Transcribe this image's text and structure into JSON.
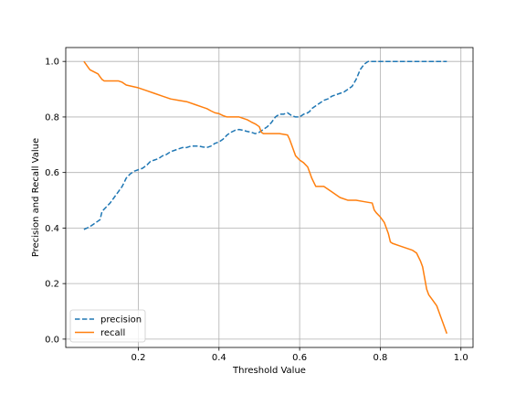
{
  "chart_data": {
    "type": "line",
    "xlabel": "Threshold Value",
    "ylabel": "Precision and Recall Value",
    "xlim": [
      0.02,
      1.03
    ],
    "ylim": [
      -0.03,
      1.05
    ],
    "xticks": [
      0.2,
      0.4,
      0.6,
      0.8,
      1.0
    ],
    "xtick_labels": [
      "0.2",
      "0.4",
      "0.6",
      "0.8",
      "1.0"
    ],
    "yticks": [
      0.0,
      0.2,
      0.4,
      0.6,
      0.8,
      1.0
    ],
    "ytick_labels": [
      "0.0",
      "0.2",
      "0.4",
      "0.6",
      "0.8",
      "1.0"
    ],
    "grid": true,
    "legend": "lower left",
    "series": [
      {
        "name": "precision",
        "color": "#1f77b4",
        "dash": "dashed",
        "x": [
          0.065,
          0.08,
          0.09,
          0.1,
          0.105,
          0.11,
          0.12,
          0.13,
          0.14,
          0.15,
          0.16,
          0.17,
          0.18,
          0.19,
          0.2,
          0.21,
          0.22,
          0.23,
          0.24,
          0.25,
          0.26,
          0.27,
          0.28,
          0.29,
          0.3,
          0.31,
          0.32,
          0.33,
          0.34,
          0.35,
          0.36,
          0.37,
          0.38,
          0.39,
          0.4,
          0.41,
          0.42,
          0.43,
          0.44,
          0.45,
          0.46,
          0.47,
          0.48,
          0.49,
          0.5,
          0.51,
          0.52,
          0.53,
          0.54,
          0.55,
          0.56,
          0.57,
          0.58,
          0.59,
          0.6,
          0.61,
          0.62,
          0.625,
          0.63,
          0.64,
          0.65,
          0.66,
          0.67,
          0.68,
          0.69,
          0.7,
          0.71,
          0.72,
          0.73,
          0.74,
          0.75,
          0.76,
          0.77,
          0.78,
          0.79,
          0.8,
          0.85,
          0.9,
          0.95,
          0.965
        ],
        "y": [
          0.395,
          0.405,
          0.415,
          0.425,
          0.43,
          0.46,
          0.475,
          0.49,
          0.51,
          0.53,
          0.55,
          0.58,
          0.595,
          0.605,
          0.61,
          0.615,
          0.625,
          0.64,
          0.645,
          0.65,
          0.66,
          0.665,
          0.675,
          0.68,
          0.685,
          0.69,
          0.69,
          0.695,
          0.695,
          0.695,
          0.692,
          0.69,
          0.695,
          0.705,
          0.71,
          0.72,
          0.735,
          0.745,
          0.752,
          0.755,
          0.752,
          0.748,
          0.745,
          0.74,
          0.745,
          0.755,
          0.765,
          0.78,
          0.8,
          0.81,
          0.81,
          0.815,
          0.805,
          0.8,
          0.8,
          0.81,
          0.815,
          0.82,
          0.83,
          0.84,
          0.85,
          0.86,
          0.865,
          0.875,
          0.88,
          0.885,
          0.89,
          0.9,
          0.91,
          0.935,
          0.97,
          0.99,
          1.0,
          1.0,
          1.0,
          1.0,
          1.0,
          1.0,
          1.0,
          1.0
        ]
      },
      {
        "name": "recall",
        "color": "#ff7f0e",
        "dash": "solid",
        "x": [
          0.065,
          0.07,
          0.075,
          0.08,
          0.1,
          0.105,
          0.11,
          0.115,
          0.12,
          0.13,
          0.14,
          0.15,
          0.16,
          0.17,
          0.2,
          0.22,
          0.24,
          0.26,
          0.28,
          0.3,
          0.32,
          0.34,
          0.36,
          0.37,
          0.38,
          0.39,
          0.4,
          0.41,
          0.42,
          0.43,
          0.44,
          0.45,
          0.46,
          0.47,
          0.48,
          0.49,
          0.5,
          0.505,
          0.51,
          0.53,
          0.55,
          0.57,
          0.575,
          0.58,
          0.585,
          0.59,
          0.6,
          0.61,
          0.62,
          0.625,
          0.63,
          0.635,
          0.64,
          0.66,
          0.68,
          0.7,
          0.72,
          0.74,
          0.76,
          0.78,
          0.785,
          0.79,
          0.8,
          0.81,
          0.815,
          0.82,
          0.825,
          0.83,
          0.85,
          0.87,
          0.88,
          0.885,
          0.89,
          0.9,
          0.905,
          0.91,
          0.915,
          0.92,
          0.93,
          0.94,
          0.945,
          0.95,
          0.955,
          0.96,
          0.965
        ],
        "y": [
          1.0,
          0.99,
          0.98,
          0.97,
          0.955,
          0.945,
          0.935,
          0.93,
          0.93,
          0.93,
          0.93,
          0.93,
          0.925,
          0.915,
          0.905,
          0.895,
          0.885,
          0.875,
          0.865,
          0.86,
          0.855,
          0.845,
          0.835,
          0.83,
          0.822,
          0.815,
          0.812,
          0.805,
          0.8,
          0.8,
          0.8,
          0.8,
          0.795,
          0.79,
          0.782,
          0.775,
          0.765,
          0.745,
          0.74,
          0.74,
          0.74,
          0.735,
          0.72,
          0.7,
          0.68,
          0.66,
          0.645,
          0.635,
          0.62,
          0.6,
          0.58,
          0.565,
          0.55,
          0.55,
          0.53,
          0.51,
          0.5,
          0.5,
          0.495,
          0.49,
          0.465,
          0.455,
          0.44,
          0.42,
          0.4,
          0.38,
          0.35,
          0.345,
          0.335,
          0.325,
          0.32,
          0.315,
          0.31,
          0.28,
          0.26,
          0.22,
          0.18,
          0.16,
          0.14,
          0.12,
          0.1,
          0.08,
          0.06,
          0.04,
          0.02
        ]
      }
    ]
  }
}
